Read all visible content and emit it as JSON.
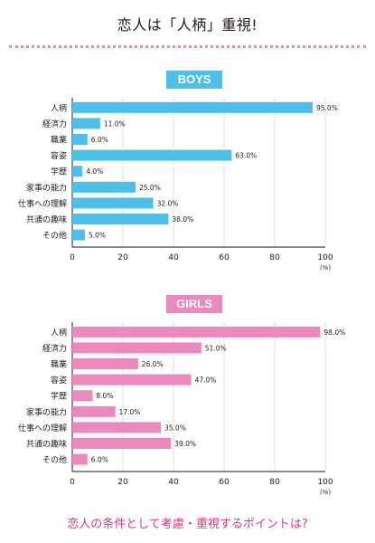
{
  "page": {
    "title": "恋人は「人柄」重視!",
    "caption": "恋人の条件として考慮・重視するポイントは?"
  },
  "colors": {
    "boys": "#4dbfea",
    "girls": "#ec89bc",
    "caption": "#d9388d",
    "divider": "#ee8bb8"
  },
  "chart_data": [
    {
      "type": "bar",
      "orientation": "horizontal",
      "title": "BOYS",
      "categories": [
        "人柄",
        "経済力",
        "職業",
        "容姿",
        "学歴",
        "家事の能力",
        "仕事への理解",
        "共通の趣味",
        "その他"
      ],
      "values": [
        95.0,
        11.0,
        6.0,
        63.0,
        4.0,
        25.0,
        32.0,
        38.0,
        5.0
      ],
      "data_labels": [
        "95.0%",
        "11.0%",
        "6.0%",
        "63.0%",
        "4.0%",
        "25.0%",
        "32.0%",
        "38.0%",
        "5.0%"
      ],
      "xlim": [
        0,
        100
      ],
      "x_ticks": [
        "0",
        "20",
        "40",
        "60",
        "80",
        "100"
      ],
      "unit": "(%)",
      "grid": true
    },
    {
      "type": "bar",
      "orientation": "horizontal",
      "title": "GIRLS",
      "categories": [
        "人柄",
        "経済力",
        "職業",
        "容姿",
        "学歴",
        "家事の能力",
        "仕事への理解",
        "共通の趣味",
        "その他"
      ],
      "values": [
        98.0,
        51.0,
        26.0,
        47.0,
        8.0,
        17.0,
        35.0,
        39.0,
        6.0
      ],
      "data_labels": [
        "98.0%",
        "51.0%",
        "26.0%",
        "47.0%",
        "8.0%",
        "17.0%",
        "35.0%",
        "39.0%",
        "6.0%"
      ],
      "xlim": [
        0,
        100
      ],
      "x_ticks": [
        "0",
        "20",
        "40",
        "60",
        "80",
        "100"
      ],
      "unit": "(%)",
      "grid": true
    }
  ]
}
